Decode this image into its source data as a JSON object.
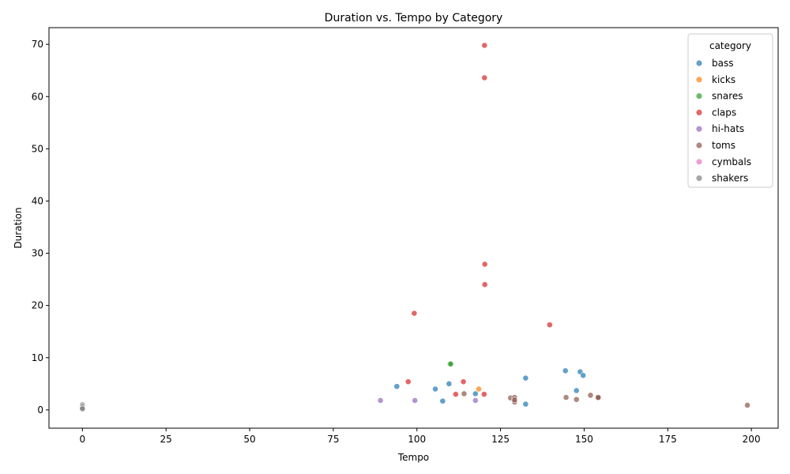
{
  "chart_data": {
    "type": "scatter",
    "title": "Duration vs. Tempo by Category",
    "xlabel": "Tempo",
    "ylabel": "Duration",
    "xlim": [
      -10,
      208
    ],
    "ylim": [
      -3.5,
      73.2
    ],
    "xticks": [
      0,
      25,
      50,
      75,
      100,
      125,
      150,
      175,
      200
    ],
    "yticks": [
      0,
      10,
      20,
      30,
      40,
      50,
      60,
      70
    ],
    "grid": false,
    "legend": {
      "title": "category",
      "placement": "top-right"
    },
    "series": [
      {
        "name": "bass",
        "color": "#1f77b4",
        "points": [
          [
            94.0,
            4.5
          ],
          [
            105.5,
            4.0
          ],
          [
            107.7,
            1.7
          ],
          [
            109.6,
            5.0
          ],
          [
            117.5,
            3.1
          ],
          [
            132.5,
            6.1
          ],
          [
            132.5,
            1.1
          ],
          [
            144.4,
            7.5
          ],
          [
            147.7,
            3.7
          ],
          [
            148.8,
            7.3
          ],
          [
            149.7,
            6.6
          ]
        ]
      },
      {
        "name": "kicks",
        "color": "#ff7f0e",
        "points": [
          [
            118.5,
            4.0
          ]
        ]
      },
      {
        "name": "snares",
        "color": "#2ca02c",
        "points": [
          [
            109.9,
            8.8
          ],
          [
            110.1,
            8.8
          ]
        ]
      },
      {
        "name": "claps",
        "color": "#d62728",
        "points": [
          [
            97.4,
            5.4
          ],
          [
            99.2,
            18.5
          ],
          [
            111.6,
            3.0
          ],
          [
            113.9,
            5.4
          ],
          [
            120.1,
            3.0
          ],
          [
            120.2,
            69.8
          ],
          [
            120.2,
            63.6
          ],
          [
            120.3,
            27.9
          ],
          [
            120.3,
            24.0
          ],
          [
            139.7,
            16.3
          ]
        ]
      },
      {
        "name": "hi-hats",
        "color": "#9467bd",
        "points": [
          [
            89.1,
            1.8
          ],
          [
            99.4,
            1.8
          ],
          [
            117.5,
            1.8
          ]
        ]
      },
      {
        "name": "toms",
        "color": "#8c564b",
        "points": [
          [
            114.1,
            3.1
          ],
          [
            128.0,
            2.3
          ],
          [
            129.2,
            2.4
          ],
          [
            129.2,
            1.5
          ],
          [
            129.2,
            1.9
          ],
          [
            144.6,
            2.4
          ],
          [
            147.7,
            2.0
          ],
          [
            151.9,
            2.8
          ],
          [
            154.2,
            2.3
          ],
          [
            154.2,
            2.4
          ],
          [
            198.8,
            0.9
          ]
        ]
      },
      {
        "name": "cymbals",
        "color": "#e377c2",
        "points": []
      },
      {
        "name": "shakers",
        "color": "#7f7f7f",
        "points": [
          [
            0.0,
            1.0
          ],
          [
            0.0,
            0.7
          ],
          [
            0.0,
            0.4
          ],
          [
            0.0,
            0.2
          ]
        ]
      }
    ]
  }
}
